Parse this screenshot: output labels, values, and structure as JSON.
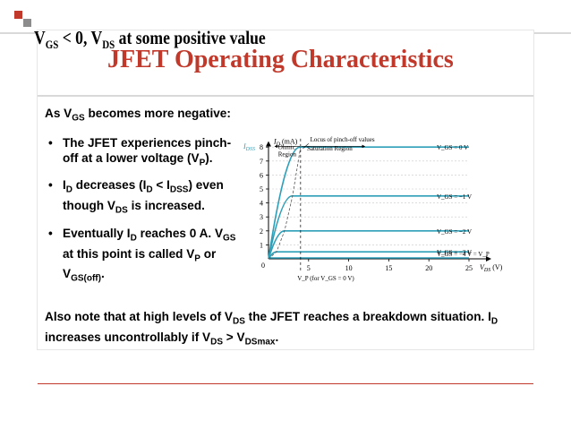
{
  "slide": {
    "condition": "V_GS < 0, V_DS at some positive value",
    "title": "JFET Operating Characteristics",
    "lead": "As V_GS becomes more negative:",
    "bullets": [
      "The JFET experiences pinch-off at a lower voltage (V_P).",
      "I_D decreases (I_D < I_DSS) even though V_DS is increased.",
      "Eventually I_D reaches 0 A. V_GS at this point is called V_P or V_GS(off)."
    ],
    "note": "Also note that at high levels of V_DS the JFET reaches a breakdown situation. I_D increases uncontrollably if V_DS > V_DSmax."
  },
  "colors": {
    "title": "#c0392b",
    "curve": "#2e9fb8",
    "pinchoff_curve": "#6aa8d4",
    "separator": "#c0392b"
  },
  "chart_data": {
    "type": "line",
    "xlabel": "V_DS (V)",
    "ylabel": "I_D (mA)",
    "xlim": [
      0,
      25
    ],
    "ylim": [
      0,
      9
    ],
    "x_ticks": [
      5,
      10,
      15,
      20,
      25
    ],
    "y_ticks": [
      1,
      2,
      3,
      4,
      5,
      6,
      7,
      8
    ],
    "idss_label": "I_DSS",
    "idss_value": 8,
    "series": [
      {
        "name": "V_GS = 0 V",
        "saturation": 8,
        "pinch_off_vds": 4
      },
      {
        "name": "V_GS = −1 V",
        "saturation": 4.5,
        "pinch_off_vds": 3
      },
      {
        "name": "V_GS = −2 V",
        "saturation": 2,
        "pinch_off_vds": 2
      },
      {
        "name": "V_GS = −3 V",
        "saturation": 0.5,
        "pinch_off_vds": 1
      },
      {
        "name": "V_GS = −4 V = V_P",
        "saturation": 0,
        "pinch_off_vds": 0
      }
    ],
    "locus_label": "Locus of pinch-off values",
    "ohmic_label": "Ohmic Region",
    "saturation_label": "Saturation Region",
    "vp_label": "V_P (for V_GS = 0 V)"
  }
}
